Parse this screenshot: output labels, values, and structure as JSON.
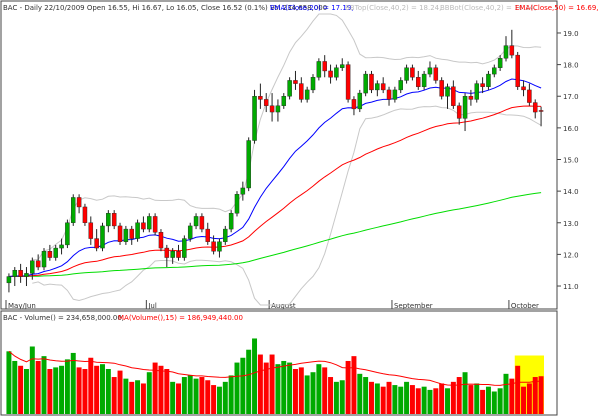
{
  "header": {
    "symbol": "BAC",
    "info": "BAC - Daily 22/10/2009 Open 16.55, Hi 16.67, Lo 16.05, Close 16.52 (0.1%) Vol 234,658,000",
    "ema20_label": "EMA(Close,20) = 17.19,",
    "bbtop_label": "BBTop(Close,40,2) = 18.24,",
    "bbbot_label": "BBBot(Close,40,2) = 16.14,",
    "ema50_label": "EMA(Close,50) = 16.69,"
  },
  "volume_header": {
    "label": "BAC - Volume() = 234,658,000.00,",
    "ma_label": "MA(Volume(),15) = 186,949,440.00"
  },
  "colors": {
    "up": "#00aa00",
    "down": "#ff0000",
    "ema20": "#0000ff",
    "ema50": "#ff0000",
    "sma200": "#00dd00",
    "bollinger": "#c8c8c8",
    "highlight": "#ffff00"
  },
  "chart_data": {
    "type": "candlestick",
    "price_axis": {
      "ticks": [
        "19.0",
        "18.0",
        "17.0",
        "16.0",
        "15.0",
        "14.0",
        "13.0",
        "12.0",
        "11.0"
      ],
      "tick_values": [
        19,
        18,
        17,
        16,
        15,
        14,
        13,
        12,
        11
      ],
      "ylim": [
        10.4,
        19.6
      ]
    },
    "x_labels": [
      {
        "label": "May/Jun",
        "index": 0
      },
      {
        "label": "Jul",
        "index": 24
      },
      {
        "label": "August",
        "index": 45
      },
      {
        "label": "September",
        "index": 66
      },
      {
        "label": "October",
        "index": 86
      }
    ],
    "volume_ylim_millions": [
      0,
      560
    ],
    "candles": [
      {
        "o": 11.1,
        "h": 11.4,
        "l": 10.8,
        "c": 11.3,
        "v": 390
      },
      {
        "o": 11.3,
        "h": 11.6,
        "l": 11.0,
        "c": 11.5,
        "v": 330
      },
      {
        "o": 11.5,
        "h": 11.7,
        "l": 11.1,
        "c": 11.3,
        "v": 300
      },
      {
        "o": 11.3,
        "h": 11.6,
        "l": 11.0,
        "c": 11.4,
        "v": 280
      },
      {
        "o": 11.4,
        "h": 11.9,
        "l": 11.2,
        "c": 11.8,
        "v": 420
      },
      {
        "o": 11.8,
        "h": 12.0,
        "l": 11.5,
        "c": 11.6,
        "v": 330
      },
      {
        "o": 11.6,
        "h": 12.2,
        "l": 11.5,
        "c": 12.1,
        "v": 360
      },
      {
        "o": 12.1,
        "h": 12.3,
        "l": 11.8,
        "c": 11.9,
        "v": 280
      },
      {
        "o": 11.9,
        "h": 12.3,
        "l": 11.8,
        "c": 12.2,
        "v": 290
      },
      {
        "o": 12.2,
        "h": 12.5,
        "l": 12.0,
        "c": 12.3,
        "v": 300
      },
      {
        "o": 12.3,
        "h": 13.1,
        "l": 12.2,
        "c": 13.0,
        "v": 340
      },
      {
        "o": 13.0,
        "h": 13.9,
        "l": 12.9,
        "c": 13.8,
        "v": 380
      },
      {
        "o": 13.8,
        "h": 13.9,
        "l": 13.3,
        "c": 13.5,
        "v": 290
      },
      {
        "o": 13.5,
        "h": 13.6,
        "l": 12.9,
        "c": 13.0,
        "v": 280
      },
      {
        "o": 13.0,
        "h": 13.2,
        "l": 12.3,
        "c": 12.5,
        "v": 350
      },
      {
        "o": 12.5,
        "h": 12.8,
        "l": 12.1,
        "c": 12.2,
        "v": 300
      },
      {
        "o": 12.2,
        "h": 13.0,
        "l": 12.1,
        "c": 12.9,
        "v": 310
      },
      {
        "o": 12.9,
        "h": 13.4,
        "l": 12.7,
        "c": 13.3,
        "v": 280
      },
      {
        "o": 13.3,
        "h": 13.4,
        "l": 12.8,
        "c": 12.9,
        "v": 230
      },
      {
        "o": 12.9,
        "h": 13.0,
        "l": 12.3,
        "c": 12.4,
        "v": 270
      },
      {
        "o": 12.4,
        "h": 12.9,
        "l": 12.3,
        "c": 12.8,
        "v": 220
      },
      {
        "o": 12.8,
        "h": 12.9,
        "l": 12.3,
        "c": 12.5,
        "v": 200
      },
      {
        "o": 12.5,
        "h": 13.1,
        "l": 12.4,
        "c": 13.0,
        "v": 210
      },
      {
        "o": 13.0,
        "h": 13.2,
        "l": 12.7,
        "c": 12.8,
        "v": 190
      },
      {
        "o": 12.8,
        "h": 13.3,
        "l": 12.7,
        "c": 13.2,
        "v": 260
      },
      {
        "o": 13.2,
        "h": 13.3,
        "l": 12.6,
        "c": 12.7,
        "v": 320
      },
      {
        "o": 12.7,
        "h": 12.8,
        "l": 12.1,
        "c": 12.2,
        "v": 300
      },
      {
        "o": 12.2,
        "h": 12.3,
        "l": 11.6,
        "c": 11.9,
        "v": 280
      },
      {
        "o": 11.9,
        "h": 12.2,
        "l": 11.7,
        "c": 12.1,
        "v": 200
      },
      {
        "o": 12.1,
        "h": 12.3,
        "l": 11.8,
        "c": 11.9,
        "v": 190
      },
      {
        "o": 11.9,
        "h": 12.6,
        "l": 11.8,
        "c": 12.5,
        "v": 230
      },
      {
        "o": 12.5,
        "h": 13.0,
        "l": 12.4,
        "c": 12.9,
        "v": 240
      },
      {
        "o": 12.9,
        "h": 13.3,
        "l": 12.8,
        "c": 13.2,
        "v": 220
      },
      {
        "o": 13.2,
        "h": 13.3,
        "l": 12.7,
        "c": 12.8,
        "v": 230
      },
      {
        "o": 12.8,
        "h": 13.0,
        "l": 12.3,
        "c": 12.4,
        "v": 210
      },
      {
        "o": 12.4,
        "h": 12.6,
        "l": 12.0,
        "c": 12.1,
        "v": 180
      },
      {
        "o": 12.1,
        "h": 12.5,
        "l": 11.9,
        "c": 12.4,
        "v": 170
      },
      {
        "o": 12.4,
        "h": 12.9,
        "l": 12.3,
        "c": 12.8,
        "v": 200
      },
      {
        "o": 12.8,
        "h": 13.4,
        "l": 12.7,
        "c": 13.3,
        "v": 240
      },
      {
        "o": 13.3,
        "h": 14.0,
        "l": 13.2,
        "c": 13.9,
        "v": 320
      },
      {
        "o": 13.9,
        "h": 14.3,
        "l": 13.7,
        "c": 14.1,
        "v": 350
      },
      {
        "o": 14.1,
        "h": 15.7,
        "l": 14.0,
        "c": 15.6,
        "v": 400
      },
      {
        "o": 15.6,
        "h": 17.2,
        "l": 15.5,
        "c": 17.0,
        "v": 470
      },
      {
        "o": 17.0,
        "h": 17.4,
        "l": 16.6,
        "c": 16.9,
        "v": 370
      },
      {
        "o": 16.9,
        "h": 17.1,
        "l": 16.5,
        "c": 16.7,
        "v": 320
      },
      {
        "o": 16.7,
        "h": 17.1,
        "l": 16.2,
        "c": 16.5,
        "v": 370
      },
      {
        "o": 16.5,
        "h": 16.9,
        "l": 16.2,
        "c": 16.7,
        "v": 310
      },
      {
        "o": 16.7,
        "h": 17.1,
        "l": 16.6,
        "c": 17.0,
        "v": 330
      },
      {
        "o": 17.0,
        "h": 17.6,
        "l": 16.9,
        "c": 17.5,
        "v": 320
      },
      {
        "o": 17.5,
        "h": 17.8,
        "l": 17.2,
        "c": 17.4,
        "v": 280
      },
      {
        "o": 17.4,
        "h": 17.6,
        "l": 16.8,
        "c": 16.9,
        "v": 290
      },
      {
        "o": 16.9,
        "h": 17.3,
        "l": 16.8,
        "c": 17.2,
        "v": 240
      },
      {
        "o": 17.2,
        "h": 17.7,
        "l": 17.1,
        "c": 17.6,
        "v": 260
      },
      {
        "o": 17.6,
        "h": 18.2,
        "l": 17.5,
        "c": 18.1,
        "v": 310
      },
      {
        "o": 18.1,
        "h": 18.3,
        "l": 17.6,
        "c": 17.8,
        "v": 290
      },
      {
        "o": 17.8,
        "h": 18.0,
        "l": 17.4,
        "c": 17.6,
        "v": 230
      },
      {
        "o": 17.6,
        "h": 18.0,
        "l": 17.5,
        "c": 17.9,
        "v": 200
      },
      {
        "o": 17.9,
        "h": 18.2,
        "l": 17.8,
        "c": 18.0,
        "v": 210
      },
      {
        "o": 18.0,
        "h": 18.1,
        "l": 16.8,
        "c": 16.9,
        "v": 330
      },
      {
        "o": 16.9,
        "h": 17.0,
        "l": 16.4,
        "c": 16.6,
        "v": 360
      },
      {
        "o": 16.6,
        "h": 17.2,
        "l": 16.5,
        "c": 17.1,
        "v": 250
      },
      {
        "o": 17.1,
        "h": 17.8,
        "l": 17.0,
        "c": 17.7,
        "v": 230
      },
      {
        "o": 17.7,
        "h": 17.8,
        "l": 17.1,
        "c": 17.2,
        "v": 200
      },
      {
        "o": 17.2,
        "h": 17.5,
        "l": 17.0,
        "c": 17.4,
        "v": 190
      },
      {
        "o": 17.4,
        "h": 17.6,
        "l": 17.1,
        "c": 17.2,
        "v": 170
      },
      {
        "o": 17.2,
        "h": 17.3,
        "l": 16.7,
        "c": 16.9,
        "v": 200
      },
      {
        "o": 16.9,
        "h": 17.3,
        "l": 16.8,
        "c": 17.2,
        "v": 180
      },
      {
        "o": 17.2,
        "h": 17.6,
        "l": 17.1,
        "c": 17.5,
        "v": 170
      },
      {
        "o": 17.5,
        "h": 18.0,
        "l": 17.4,
        "c": 17.9,
        "v": 200
      },
      {
        "o": 17.9,
        "h": 18.0,
        "l": 17.5,
        "c": 17.6,
        "v": 180
      },
      {
        "o": 17.6,
        "h": 17.8,
        "l": 17.2,
        "c": 17.3,
        "v": 160
      },
      {
        "o": 17.3,
        "h": 17.8,
        "l": 17.2,
        "c": 17.7,
        "v": 170
      },
      {
        "o": 17.7,
        "h": 18.1,
        "l": 17.6,
        "c": 17.9,
        "v": 150
      },
      {
        "o": 17.9,
        "h": 18.0,
        "l": 17.4,
        "c": 17.5,
        "v": 160
      },
      {
        "o": 17.5,
        "h": 17.6,
        "l": 16.9,
        "c": 17.0,
        "v": 190
      },
      {
        "o": 17.0,
        "h": 17.4,
        "l": 16.6,
        "c": 17.3,
        "v": 160
      },
      {
        "o": 17.3,
        "h": 17.5,
        "l": 16.6,
        "c": 16.7,
        "v": 200
      },
      {
        "o": 16.7,
        "h": 16.8,
        "l": 16.1,
        "c": 16.3,
        "v": 230
      },
      {
        "o": 16.3,
        "h": 17.1,
        "l": 15.9,
        "c": 17.0,
        "v": 260
      },
      {
        "o": 17.0,
        "h": 17.2,
        "l": 16.7,
        "c": 16.9,
        "v": 180
      },
      {
        "o": 16.9,
        "h": 17.5,
        "l": 16.8,
        "c": 17.4,
        "v": 190
      },
      {
        "o": 17.4,
        "h": 17.6,
        "l": 17.1,
        "c": 17.3,
        "v": 150
      },
      {
        "o": 17.3,
        "h": 17.8,
        "l": 17.2,
        "c": 17.7,
        "v": 170
      },
      {
        "o": 17.7,
        "h": 18.0,
        "l": 17.6,
        "c": 17.9,
        "v": 140
      },
      {
        "o": 17.9,
        "h": 18.3,
        "l": 17.8,
        "c": 18.2,
        "v": 160
      },
      {
        "o": 18.2,
        "h": 18.9,
        "l": 18.1,
        "c": 18.6,
        "v": 250
      },
      {
        "o": 18.6,
        "h": 19.1,
        "l": 18.2,
        "c": 18.3,
        "v": 220
      },
      {
        "o": 18.3,
        "h": 18.4,
        "l": 17.2,
        "c": 17.3,
        "v": 300
      },
      {
        "o": 17.3,
        "h": 17.5,
        "l": 17.0,
        "c": 17.2,
        "v": 170
      },
      {
        "o": 17.2,
        "h": 17.4,
        "l": 16.7,
        "c": 16.8,
        "v": 190
      },
      {
        "o": 16.8,
        "h": 16.9,
        "l": 16.3,
        "c": 16.5,
        "v": 230
      },
      {
        "o": 16.55,
        "h": 16.67,
        "l": 16.05,
        "c": 16.52,
        "v": 235
      }
    ]
  }
}
